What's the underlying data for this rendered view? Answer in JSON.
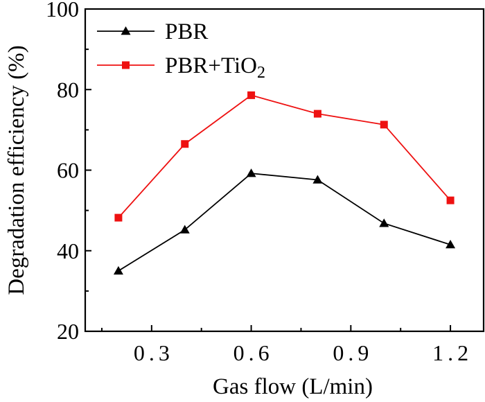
{
  "chart_data": {
    "type": "line",
    "xlabel": "Gas flow (L/min)",
    "ylabel": "Degradation efficiency  (%)",
    "xlim": [
      0.1,
      1.3
    ],
    "ylim": [
      20,
      100
    ],
    "xticks": [
      0.3,
      0.6,
      0.9,
      1.2
    ],
    "xtick_labels": [
      "0.3",
      "0.6",
      "0.9",
      "1.2"
    ],
    "yticks": [
      20,
      40,
      60,
      80,
      100
    ],
    "ytick_labels": [
      "20",
      "40",
      "60",
      "80",
      "100"
    ],
    "x": [
      0.2,
      0.4,
      0.6,
      0.8,
      1.0,
      1.2
    ],
    "series": [
      {
        "name": "PBR",
        "name_subscript": "",
        "color": "#000000",
        "marker": "triangle",
        "values": [
          35.0,
          45.2,
          59.2,
          57.6,
          46.8,
          41.5
        ]
      },
      {
        "name": "PBR+TiO",
        "name_subscript": "2",
        "color": "#ee1111",
        "marker": "square",
        "values": [
          48.2,
          66.5,
          78.6,
          74.0,
          71.3,
          52.5
        ]
      }
    ],
    "legend_position": "top-left",
    "grid": false
  }
}
